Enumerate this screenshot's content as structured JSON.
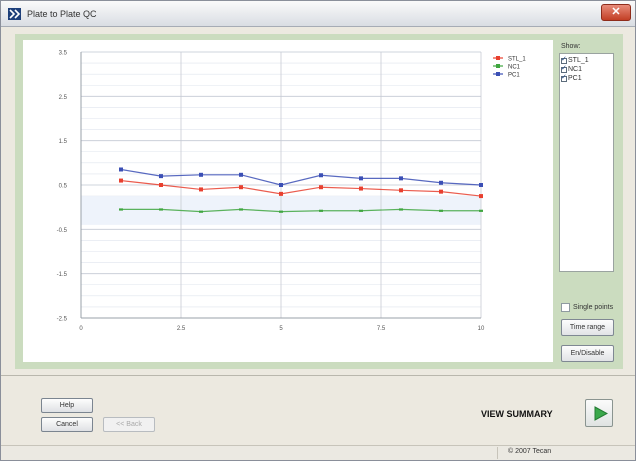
{
  "window": {
    "title": "Plate to Plate QC",
    "close_label": "✕"
  },
  "show_panel": {
    "label": "Show:",
    "items": [
      {
        "label": "STL_1",
        "checked": true
      },
      {
        "label": "NC1",
        "checked": true
      },
      {
        "label": "PC1",
        "checked": true
      }
    ]
  },
  "single_points": {
    "label": "Single points",
    "checked": false
  },
  "buttons": {
    "time_range": "Time range",
    "on_disable": "En/Disable",
    "help": "Help",
    "cancel": "Cancel",
    "back": "<< Back"
  },
  "view_summary": "VIEW SUMMARY",
  "copyright": "© 2007 Tecan",
  "colors": {
    "stl": "#e8402f",
    "nc": "#3fa63f",
    "pc": "#3b4fb5",
    "panel": "#cbdcbf"
  },
  "chart_data": {
    "type": "line",
    "x_ticks": [
      "0",
      "2.5",
      "5",
      "7.5",
      "10"
    ],
    "y_ticks": [
      "3.5",
      "2.5",
      "1.5",
      "0.5",
      "-0.5",
      "-1.5",
      "-2.5"
    ],
    "xlim": [
      0,
      10
    ],
    "ylim": [
      -2.5,
      3.5
    ],
    "legend_position": "top-right",
    "grid": true,
    "x": [
      1,
      2,
      3,
      4,
      5,
      6,
      7,
      8,
      9,
      10
    ],
    "series": [
      {
        "name": "STL_1",
        "color": "#e8402f",
        "values": [
          0.6,
          0.5,
          0.4,
          0.45,
          0.3,
          0.45,
          0.42,
          0.38,
          0.35,
          0.25
        ]
      },
      {
        "name": "NC1",
        "color": "#3fa63f",
        "values": [
          -0.05,
          -0.05,
          -0.1,
          -0.05,
          -0.1,
          -0.08,
          -0.08,
          -0.05,
          -0.08,
          -0.08
        ]
      },
      {
        "name": "PC1",
        "color": "#3b4fb5",
        "values": [
          0.85,
          0.7,
          0.73,
          0.73,
          0.5,
          0.72,
          0.65,
          0.65,
          0.55,
          0.5
        ]
      }
    ]
  }
}
